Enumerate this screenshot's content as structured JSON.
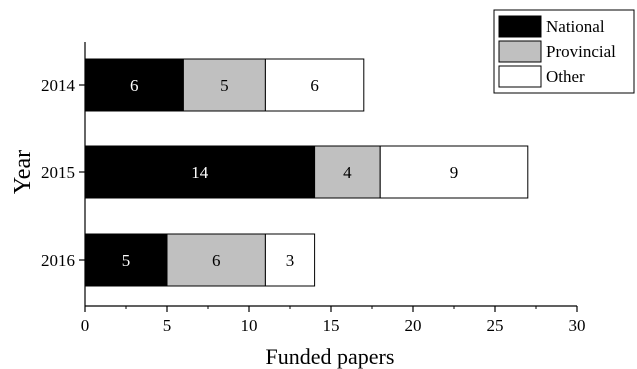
{
  "chart_data": {
    "type": "bar",
    "orientation": "horizontal",
    "stacked": true,
    "title": "",
    "xlabel": "Funded papers",
    "ylabel": "Year",
    "categories": [
      "2014",
      "2015",
      "2016"
    ],
    "series": [
      {
        "name": "National",
        "values": [
          6,
          14,
          5
        ],
        "color": "#000000",
        "label_color": "#ffffff"
      },
      {
        "name": "Provincial",
        "values": [
          5,
          4,
          6
        ],
        "color": "#c0c0c0",
        "label_color": "#000000"
      },
      {
        "name": "Other",
        "values": [
          6,
          9,
          3
        ],
        "color": "#ffffff",
        "label_color": "#000000"
      }
    ],
    "xlim": [
      0,
      30
    ],
    "xticks": [
      0,
      5,
      10,
      15,
      20,
      25,
      30
    ],
    "grid": false,
    "legend": "top-right"
  }
}
